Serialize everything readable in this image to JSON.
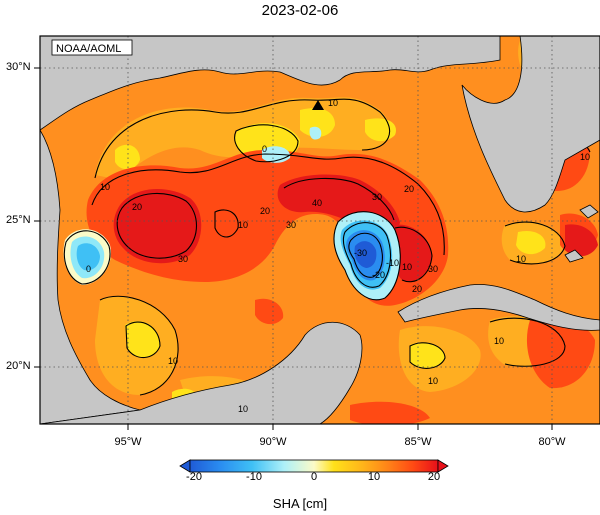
{
  "map": {
    "title": "2023-02-06",
    "credit": "NOAA/AOML",
    "lat_labels": [
      "30°N",
      "25°N",
      "20°N"
    ],
    "lon_labels": [
      "95°W",
      "90°W",
      "85°W",
      "80°W"
    ],
    "contour_labels": [
      "10",
      "10",
      "0",
      "20",
      "10",
      "30",
      "20",
      "30",
      "40",
      "30",
      "20",
      "10",
      "-30",
      "-20",
      "-10",
      "30",
      "20",
      "10",
      "10",
      "10",
      "10",
      "10",
      "0",
      "10"
    ],
    "colorbar": {
      "ticks": [
        "-20",
        "-10",
        "0",
        "10",
        "20"
      ],
      "label": "SHA [cm]",
      "colors": [
        "#1f5bd6",
        "#2a8cf0",
        "#3fc0f5",
        "#8fe8f8",
        "#d8fafa",
        "#f5f07a",
        "#ffd21a",
        "#ffa51a",
        "#ff7a18",
        "#ff4a14",
        "#e8101a"
      ]
    },
    "colors": {
      "land": "#c6c6c6",
      "ocean_base": "#ff8f1f"
    },
    "markers": [
      {
        "name": "station",
        "shape": "triangle"
      }
    ]
  }
}
